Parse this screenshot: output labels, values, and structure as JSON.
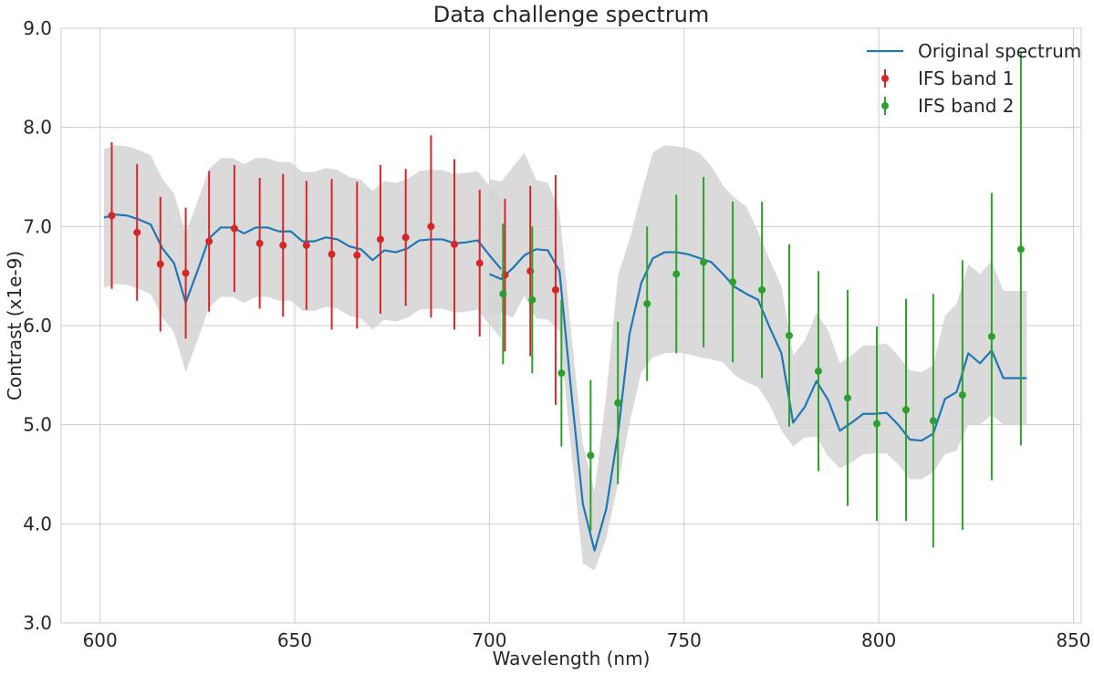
{
  "chart_data": {
    "type": "line",
    "title": "Data challenge spectrum",
    "xlabel": "Wavelength (nm)",
    "ylabel": "Contrast (x1e-9)",
    "xlim": [
      590,
      852
    ],
    "ylim": [
      3.0,
      9.0
    ],
    "xticks": [
      600,
      650,
      700,
      750,
      800,
      850
    ],
    "yticks": [
      3.0,
      4.0,
      5.0,
      6.0,
      7.0,
      8.0,
      9.0
    ],
    "xtick_labels": [
      "600",
      "650",
      "700",
      "750",
      "800",
      "850"
    ],
    "ytick_labels": [
      "3.0",
      "4.0",
      "5.0",
      "6.0",
      "7.0",
      "8.0",
      "9.0"
    ],
    "grid": true,
    "legend_position": "top-right",
    "colors": {
      "original": "#1f77b4",
      "band1": "#d62728",
      "band2": "#2ca02c",
      "band_fill": "#d3d3d3"
    },
    "series": [
      {
        "name": "Original spectrum",
        "kind": "line",
        "x": [
          601,
          604,
          607,
          610,
          613,
          616,
          619,
          622,
          625,
          628,
          631,
          634,
          637,
          640,
          643,
          646,
          649,
          652,
          655,
          658,
          661,
          664,
          667,
          670,
          673,
          676,
          679,
          682,
          685,
          688,
          691,
          694,
          697,
          700,
          703
        ],
        "y": [
          7.09,
          7.12,
          7.11,
          7.07,
          7.02,
          6.78,
          6.63,
          6.23,
          6.55,
          6.88,
          6.99,
          6.99,
          6.93,
          6.99,
          6.99,
          6.95,
          6.95,
          6.85,
          6.85,
          6.89,
          6.87,
          6.8,
          6.77,
          6.66,
          6.76,
          6.74,
          6.78,
          6.86,
          6.87,
          6.87,
          6.83,
          6.84,
          6.86,
          6.71,
          6.57
        ]
      },
      {
        "name": "",
        "kind": "line",
        "x": [
          700,
          703,
          706,
          709,
          712,
          715,
          718,
          721,
          724,
          727,
          730,
          733,
          736,
          739,
          742,
          745,
          748,
          751,
          754,
          757,
          760,
          763,
          766,
          769,
          772,
          775,
          778,
          781,
          784,
          787,
          790,
          793,
          796,
          799,
          802,
          805,
          808,
          811,
          814,
          817,
          820,
          823,
          826,
          829,
          832,
          835,
          838
        ],
        "y": [
          6.52,
          6.47,
          6.58,
          6.71,
          6.77,
          6.76,
          6.55,
          5.34,
          4.2,
          3.73,
          4.15,
          4.9,
          5.92,
          6.43,
          6.68,
          6.74,
          6.74,
          6.72,
          6.68,
          6.64,
          6.52,
          6.39,
          6.32,
          6.26,
          5.98,
          5.72,
          5.02,
          5.18,
          5.44,
          5.25,
          4.94,
          5.02,
          5.11,
          5.11,
          5.12,
          5.0,
          4.85,
          4.84,
          4.91,
          5.26,
          5.33,
          5.72,
          5.62,
          5.75,
          5.47,
          5.47,
          5.47
        ]
      },
      {
        "name": "IFS band 1",
        "kind": "errorbar",
        "x": [
          603,
          609.5,
          615.5,
          622,
          628,
          634.5,
          641,
          647,
          653,
          659.5,
          666,
          672,
          678.5,
          685,
          691,
          697.5,
          704,
          710.5,
          717
        ],
        "y": [
          7.11,
          6.94,
          6.62,
          6.53,
          6.85,
          6.98,
          6.83,
          6.81,
          6.81,
          6.72,
          6.71,
          6.87,
          6.89,
          7.0,
          6.82,
          6.63,
          6.51,
          6.55,
          6.36
        ],
        "yerr": [
          0.74,
          0.69,
          0.68,
          0.66,
          0.71,
          0.64,
          0.66,
          0.72,
          0.65,
          0.76,
          0.74,
          0.75,
          0.69,
          0.92,
          0.86,
          0.74,
          0.77,
          0.86,
          1.16
        ]
      },
      {
        "name": "IFS band 2",
        "kind": "errorbar",
        "x": [
          703.5,
          711,
          718.5,
          726,
          733,
          740.5,
          748,
          755,
          762.5,
          770,
          777,
          784.5,
          792,
          799.5,
          807,
          814,
          821.5,
          829,
          836.5
        ],
        "y": [
          6.32,
          6.26,
          5.52,
          4.69,
          5.22,
          6.22,
          6.52,
          6.64,
          6.44,
          6.36,
          5.9,
          5.54,
          5.27,
          5.01,
          5.15,
          5.04,
          5.3,
          5.89,
          6.77
        ],
        "yerr": [
          0.71,
          0.74,
          0.74,
          0.76,
          0.82,
          0.78,
          0.8,
          0.86,
          0.81,
          0.89,
          0.92,
          1.01,
          1.09,
          0.98,
          1.12,
          1.28,
          1.36,
          1.45,
          1.98
        ]
      }
    ],
    "uncertainty_bands": [
      {
        "x": [
          601,
          604,
          607,
          610,
          613,
          616,
          619,
          622,
          625,
          628,
          631,
          634,
          637,
          640,
          643,
          646,
          649,
          652,
          655,
          658,
          661,
          664,
          667,
          670,
          673,
          676,
          679,
          682,
          685,
          688,
          691,
          694,
          697,
          700,
          703
        ],
        "upper": [
          7.78,
          7.82,
          7.81,
          7.77,
          7.72,
          7.48,
          7.33,
          6.93,
          7.25,
          7.58,
          7.69,
          7.69,
          7.63,
          7.69,
          7.69,
          7.65,
          7.65,
          7.55,
          7.55,
          7.59,
          7.57,
          7.5,
          7.47,
          7.36,
          7.46,
          7.44,
          7.48,
          7.56,
          7.57,
          7.57,
          7.53,
          7.54,
          7.56,
          7.41,
          7.27
        ],
        "lower": [
          6.38,
          6.42,
          6.41,
          6.37,
          6.32,
          6.08,
          5.93,
          5.53,
          5.85,
          6.18,
          6.29,
          6.29,
          6.23,
          6.29,
          6.29,
          6.25,
          6.25,
          6.15,
          6.15,
          6.19,
          6.17,
          6.1,
          6.07,
          5.96,
          6.06,
          6.04,
          6.08,
          6.16,
          6.17,
          6.17,
          6.13,
          6.14,
          6.16,
          6.01,
          5.87
        ]
      },
      {
        "x": [
          700,
          703,
          706,
          709,
          712,
          715,
          718,
          721,
          724,
          727,
          730,
          733,
          736,
          739,
          742,
          745,
          748,
          751,
          754,
          757,
          760,
          763,
          766,
          769,
          772,
          775,
          778,
          781,
          784,
          787,
          790,
          793,
          796,
          799,
          802,
          805,
          808,
          811,
          814,
          817,
          820,
          823,
          826,
          829,
          832,
          835,
          838
        ],
        "upper": [
          7.48,
          7.45,
          7.6,
          7.74,
          7.47,
          7.44,
          7.15,
          5.94,
          4.8,
          4.33,
          5.3,
          6.5,
          6.87,
          7.33,
          7.75,
          7.82,
          7.81,
          7.79,
          7.74,
          7.61,
          7.41,
          7.29,
          7.2,
          6.95,
          6.66,
          6.4,
          5.7,
          5.85,
          6.13,
          5.95,
          5.62,
          5.7,
          5.8,
          5.8,
          5.82,
          5.7,
          5.55,
          5.53,
          5.6,
          6.1,
          6.22,
          6.62,
          6.52,
          6.65,
          6.35,
          6.35,
          6.35
        ],
        "lower": [
          6.12,
          6.13,
          6.08,
          6.3,
          6.07,
          6.06,
          5.95,
          4.74,
          3.6,
          3.53,
          3.85,
          4.4,
          5.02,
          5.53,
          5.68,
          5.72,
          5.73,
          5.71,
          5.68,
          5.66,
          5.63,
          5.5,
          5.43,
          5.38,
          5.2,
          4.94,
          4.78,
          4.87,
          4.88,
          4.68,
          4.56,
          4.62,
          4.7,
          4.71,
          4.71,
          4.6,
          4.45,
          4.45,
          4.52,
          4.7,
          4.74,
          5.0,
          5.0,
          5.1,
          5.0,
          5.0,
          5.0
        ]
      }
    ]
  }
}
